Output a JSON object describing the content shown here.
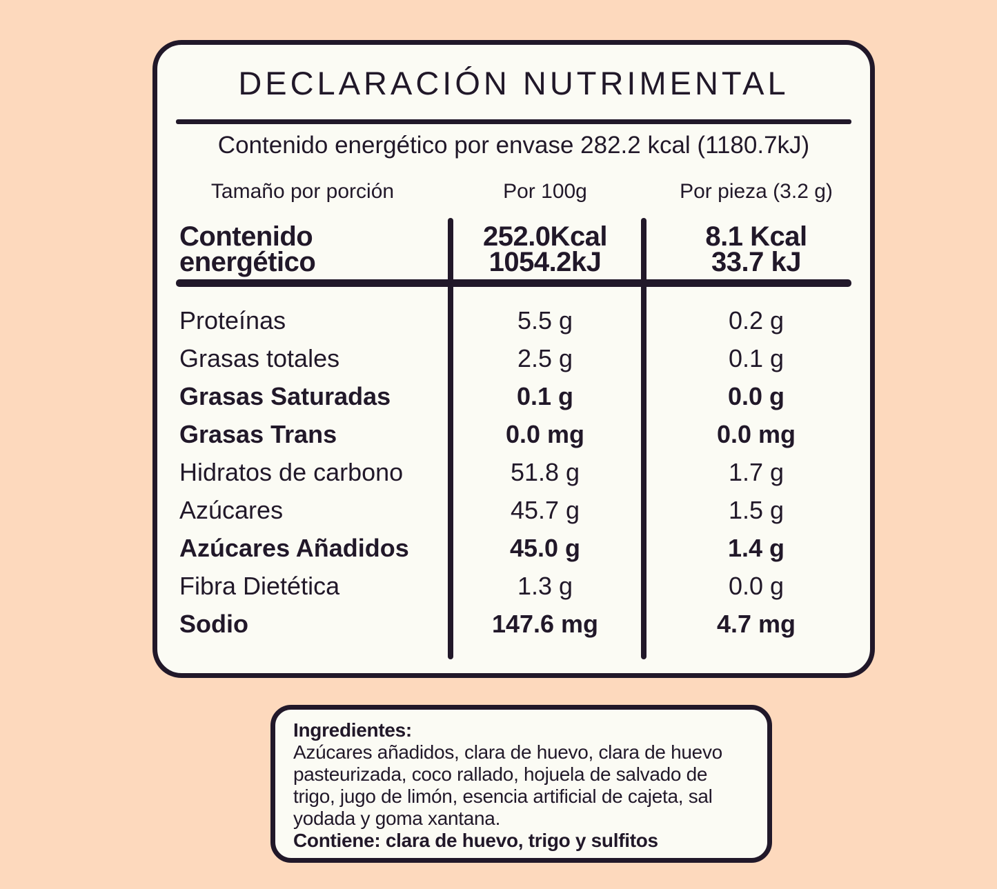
{
  "colors": {
    "background": "#fdd9bd",
    "card": "#fbfbf4",
    "ink": "#211829"
  },
  "panel": {
    "title": "DECLARACIÓN NUTRIMENTAL",
    "energy_per_package": "Contenido energético por envase 282.2 kcal (1180.7kJ)",
    "column_headers": {
      "serving": "Tamaño por porción",
      "per_100g": "Por 100g",
      "per_piece": "Por pieza (3.2 g)"
    },
    "energy_row": {
      "label_line1": "Contenido",
      "label_line2": "energético",
      "per100_line1": "252.0Kcal",
      "per100_line2": "1054.2kJ",
      "piece_line1": "8.1 Kcal",
      "piece_line2": "33.7 kJ"
    },
    "rows": [
      {
        "label": "Proteínas",
        "per100": "5.5 g",
        "piece": "0.2 g"
      },
      {
        "label": "Grasas totales",
        "per100": "2.5 g",
        "piece": "0.1 g"
      },
      {
        "label": "Grasas Saturadas",
        "per100": "0.1 g",
        "piece": "0.0 g"
      },
      {
        "label": "Grasas Trans",
        "per100": "0.0 mg",
        "piece": "0.0 mg"
      },
      {
        "label": "Hidratos de carbono",
        "per100": "51.8 g",
        "piece": "1.7 g"
      },
      {
        "label": "Azúcares",
        "per100": "45.7 g",
        "piece": "1.5 g"
      },
      {
        "label": "Azúcares Añadidos",
        "per100": "45.0 g",
        "piece": "1.4 g"
      },
      {
        "label": "Fibra Dietética",
        "per100": "1.3 g",
        "piece": "0.0 g"
      },
      {
        "label": "Sodio",
        "per100": "147.6 mg",
        "piece": "4.7 mg"
      }
    ]
  },
  "ingredients_box": {
    "heading": "Ingredientes:",
    "body": "Azúcares añadidos, clara de huevo, clara de huevo pasteurizada, coco rallado, hojuela de salvado de trigo, jugo de limón, esencia artificial de cajeta, sal yodada y goma xantana.",
    "contains": "Contiene: clara de huevo, trigo y sulfitos"
  }
}
